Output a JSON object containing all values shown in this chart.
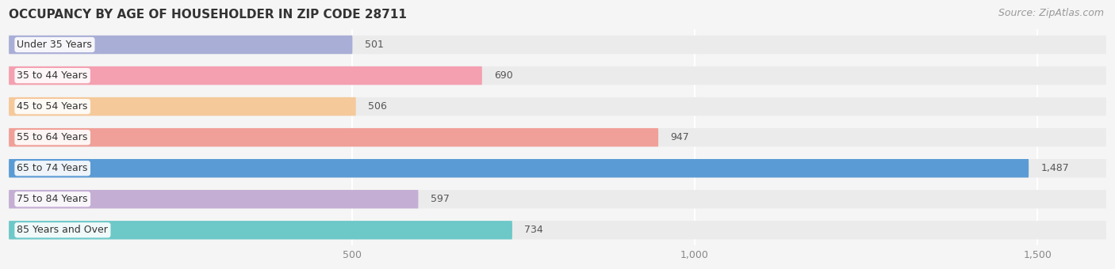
{
  "title": "OCCUPANCY BY AGE OF HOUSEHOLDER IN ZIP CODE 28711",
  "source": "Source: ZipAtlas.com",
  "categories": [
    "Under 35 Years",
    "35 to 44 Years",
    "45 to 54 Years",
    "55 to 64 Years",
    "65 to 74 Years",
    "75 to 84 Years",
    "85 Years and Over"
  ],
  "values": [
    501,
    690,
    506,
    947,
    1487,
    597,
    734
  ],
  "bar_colors": [
    "#a8aed6",
    "#f4a0b0",
    "#f5c99a",
    "#f0a098",
    "#5b9bd5",
    "#c4aed4",
    "#6dc8c8"
  ],
  "row_bg_color": "#ebebeb",
  "background_color": "#f5f5f5",
  "xlim_max": 1600,
  "xticks": [
    500,
    1000,
    1500
  ],
  "xticklabels": [
    "500",
    "1,000",
    "1,500"
  ],
  "title_fontsize": 11,
  "source_fontsize": 9,
  "label_fontsize": 9,
  "value_fontsize": 9
}
